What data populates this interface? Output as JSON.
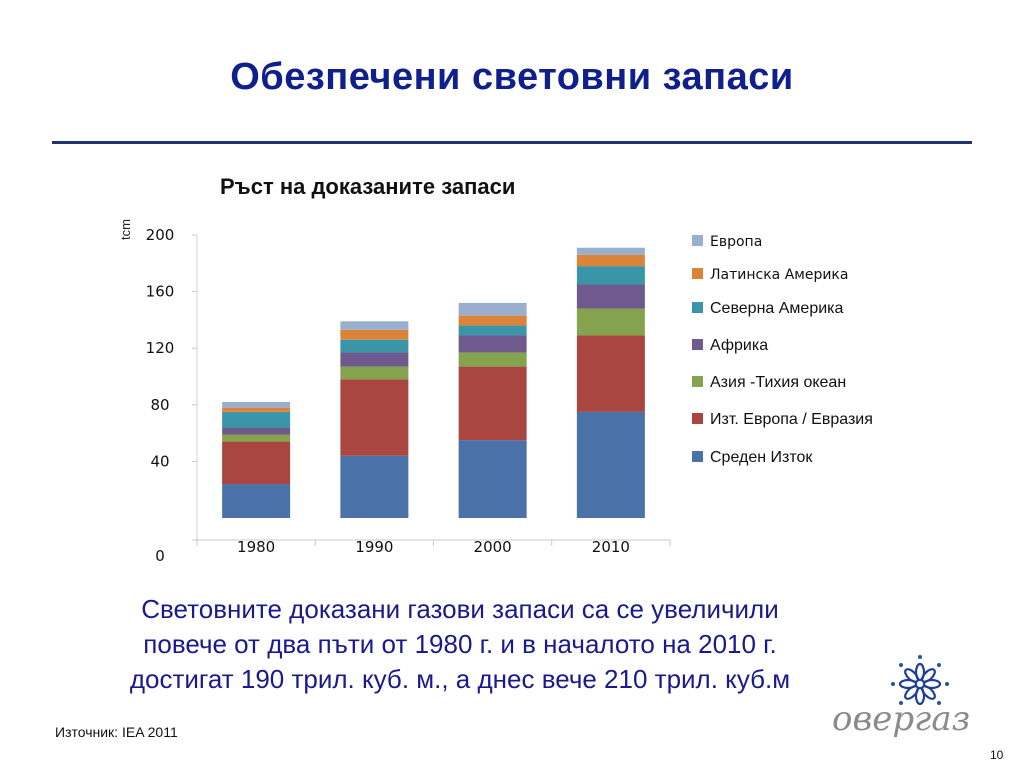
{
  "slide": {
    "title": "Обезпечени световни запаси",
    "summary_lines": [
      "Световните доказани газови запаси са се увеличили",
      "повече от два пъти от 1980 г. и в началото на 2010 г.",
      "достигат 190 трил. куб. м., а днес вече 210 трил. куб.м"
    ],
    "source": "Източник: IEA 2011",
    "page_number": "10",
    "logo_text": "овергаз"
  },
  "chart_data": {
    "type": "bar",
    "stacked": true,
    "title": "Ръст на доказаните запаси",
    "ylabel": "tcm",
    "xlabel": "",
    "categories": [
      "1980",
      "1990",
      "2000",
      "2010"
    ],
    "ylim": [
      0,
      200
    ],
    "yticks": [
      0,
      40,
      80,
      120,
      160,
      200
    ],
    "grid": false,
    "legend_position": "right",
    "series": [
      {
        "name": "Среден Изток",
        "color": "#4a71a8",
        "values": [
          24,
          44,
          55,
          75
        ]
      },
      {
        "name": "Изт. Европа / Евразия",
        "color": "#a8463f",
        "values": [
          30,
          54,
          52,
          54
        ]
      },
      {
        "name": "Азия -Тихия океан",
        "color": "#85a24e",
        "values": [
          5,
          9,
          10,
          19
        ]
      },
      {
        "name": "Африка",
        "color": "#6f5a8e",
        "values": [
          5,
          10,
          12,
          17
        ]
      },
      {
        "name": "Северна Америка",
        "color": "#3a95a8",
        "values": [
          11,
          9,
          7,
          13
        ]
      },
      {
        "name": "Латинска Америка",
        "color": "#db8439",
        "values": [
          3,
          7,
          7,
          8
        ]
      },
      {
        "name": "Европа",
        "color": "#9aafcd",
        "values": [
          4,
          6,
          9,
          5
        ]
      }
    ]
  }
}
